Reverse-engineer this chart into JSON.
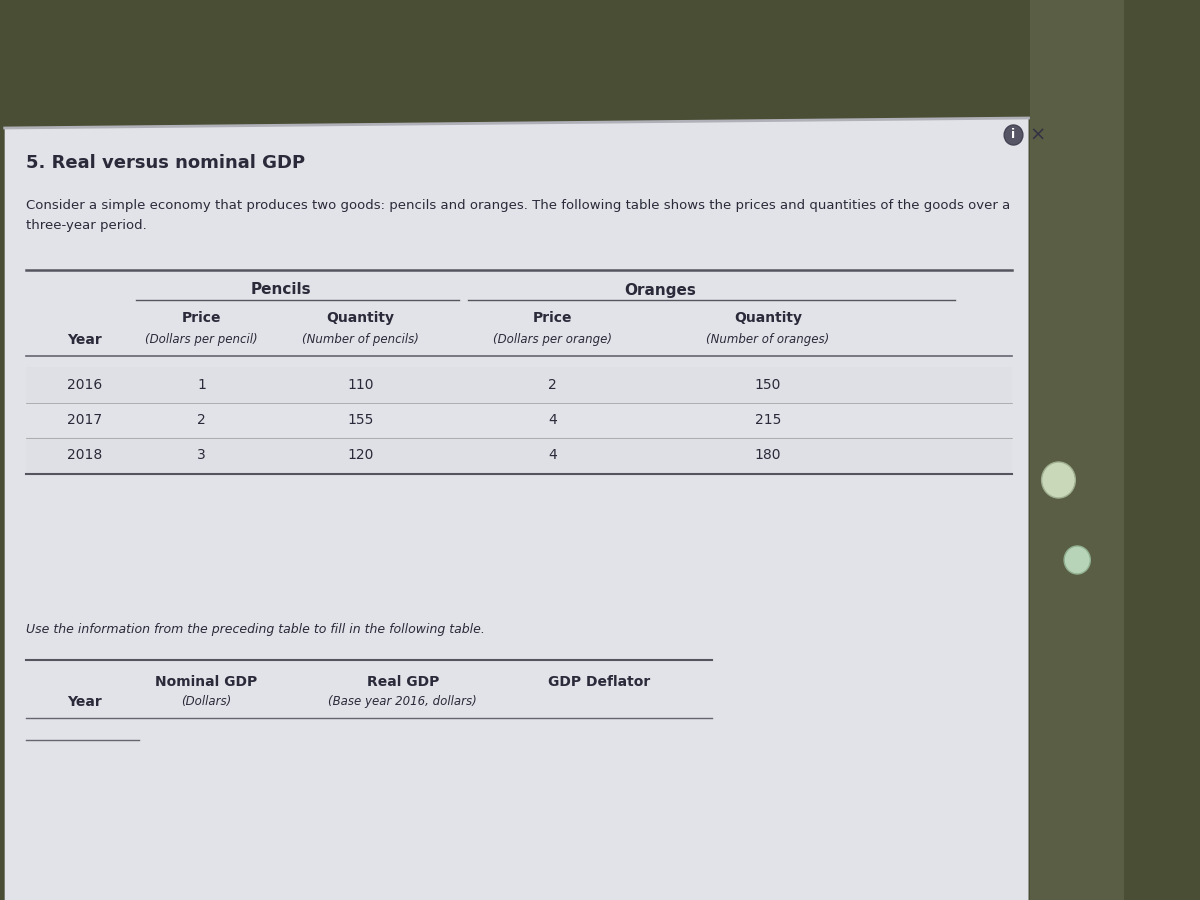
{
  "title": "5. Real versus nominal GDP",
  "intro_text_line1": "Consider a simple economy that produces two goods: pencils and oranges. The following table shows the prices and quantities of the goods over a",
  "intro_text_line2": "three-year period.",
  "table1": {
    "rows": [
      {
        "year": "2016",
        "pencil_price": "1",
        "pencil_qty": "110",
        "orange_price": "2",
        "orange_qty": "150"
      },
      {
        "year": "2017",
        "pencil_price": "2",
        "pencil_qty": "155",
        "orange_price": "4",
        "orange_qty": "215"
      },
      {
        "year": "2018",
        "pencil_price": "3",
        "pencil_qty": "120",
        "orange_price": "4",
        "orange_qty": "180"
      }
    ]
  },
  "instruction_text": "Use the information from the preceding table to fill in the following table.",
  "outer_bg": "#4a4e35",
  "panel_bg": "#e8e8ec",
  "panel_bg2": "#dcdde0",
  "title_color": "#2a2a3a",
  "text_color": "#2a2a3a",
  "line_color": "#888890",
  "info_btn_bg": "#666677",
  "table_row_alt": "#d8d8dc"
}
